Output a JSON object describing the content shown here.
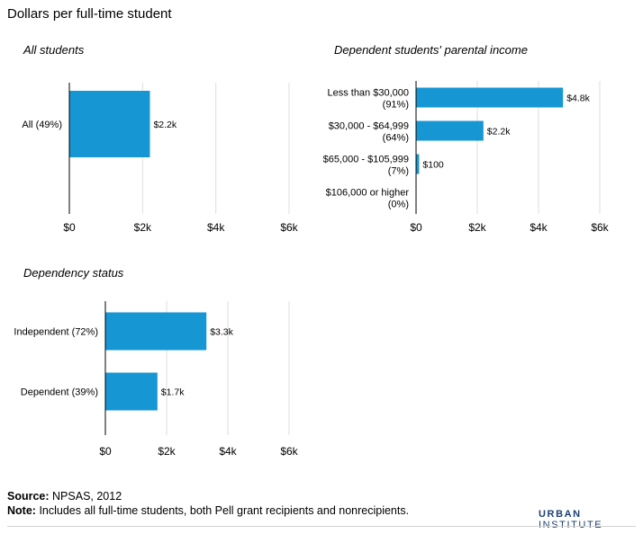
{
  "title": "Dollars per full-time student",
  "colors": {
    "bar": "#1696d2",
    "grid": "#dedede",
    "axis": "#000000"
  },
  "chart_data": [
    {
      "type": "bar",
      "orientation": "horizontal",
      "title": "All students",
      "categories": [
        "All (49%)"
      ],
      "values": [
        2200
      ],
      "value_labels": [
        "$2.2k"
      ],
      "xlim": [
        0,
        6000
      ],
      "xticks": [
        "$0",
        "$2k",
        "$4k",
        "$6k"
      ],
      "grid": true
    },
    {
      "type": "bar",
      "orientation": "horizontal",
      "title": "Dependent students' parental income",
      "categories": [
        [
          "Less than $30,000",
          "(91%)"
        ],
        [
          "$30,000 - $64,999",
          "(64%)"
        ],
        [
          "$65,000 - $105,999",
          "(7%)"
        ],
        [
          "$106,000 or higher",
          "(0%)"
        ]
      ],
      "values": [
        4800,
        2200,
        100,
        0
      ],
      "value_labels": [
        "$4.8k",
        "$2.2k",
        "$100",
        ""
      ],
      "xlim": [
        0,
        6000
      ],
      "xticks": [
        "$0",
        "$2k",
        "$4k",
        "$6k"
      ],
      "grid": true
    },
    {
      "type": "bar",
      "orientation": "horizontal",
      "title": "Dependency status",
      "categories": [
        "Independent (72%)",
        "Dependent (39%)"
      ],
      "values": [
        3300,
        1700
      ],
      "value_labels": [
        "$3.3k",
        "$1.7k"
      ],
      "xlim": [
        0,
        6000
      ],
      "xticks": [
        "$0",
        "$2k",
        "$4k",
        "$6k"
      ],
      "grid": true
    }
  ],
  "footer": {
    "source_label": "Source:",
    "source_text": "NPSAS, 2012",
    "note_label": "Note:",
    "note_text": "Includes all full-time students, both Pell grant recipients and nonrecipients."
  },
  "logo": {
    "word1": "URBAN",
    "word2": "INSTITUTE"
  }
}
